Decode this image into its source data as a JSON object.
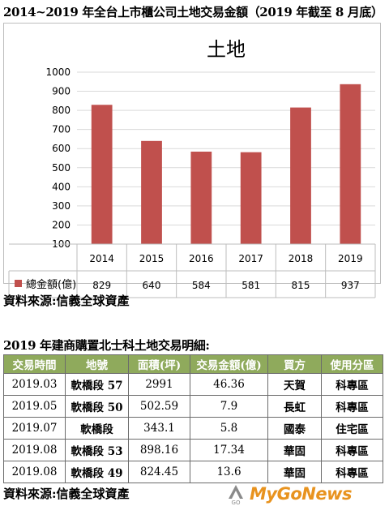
{
  "heading": "2014~2019 年全台上市櫃公司土地交易金額（2019 年截至 8 月底）",
  "chart_data": {
    "type": "bar",
    "title": "土地",
    "categories": [
      "2014",
      "2015",
      "2016",
      "2017",
      "2018",
      "2019"
    ],
    "series": [
      {
        "name": "總金額(億)",
        "values": [
          829,
          640,
          584,
          581,
          815,
          937
        ],
        "color": "#c0504d"
      }
    ],
    "ylim": [
      100,
      1000
    ],
    "yticks": [
      100,
      200,
      300,
      400,
      500,
      600,
      700,
      800,
      900,
      1000
    ],
    "grid": true,
    "data_table": true,
    "legend": "data-table-left"
  },
  "source_1": "資料來源:信義全球資產",
  "table": {
    "title": "2019 年建商購置北士科土地交易明細:",
    "headers": [
      "交易時間",
      "地號",
      "面積(坪)",
      "交易金額(億)",
      "買方",
      "使用分區"
    ],
    "rows": [
      [
        "2019.03",
        "軟橋段 57",
        "2991",
        "46.36",
        "天賀",
        "科專區"
      ],
      [
        "2019.05",
        "軟橋段 50",
        "502.59",
        "7.9",
        "長虹",
        "科專區"
      ],
      [
        "2019.07",
        "軟橋段",
        "343.1",
        "5.8",
        "國泰",
        "住宅區"
      ],
      [
        "2019.08",
        "軟橋段 53",
        "898.16",
        "17.34",
        "華固",
        "科專區"
      ],
      [
        "2019.08",
        "軟橋段 49",
        "824.45",
        "13.6",
        "華固",
        "科專區"
      ]
    ],
    "header_color": "#8faa5c"
  },
  "source_2": "資料來源:信義全球資產",
  "logo": {
    "text": "MyGoNews",
    "mark": "GO",
    "color": "#e8931f"
  }
}
